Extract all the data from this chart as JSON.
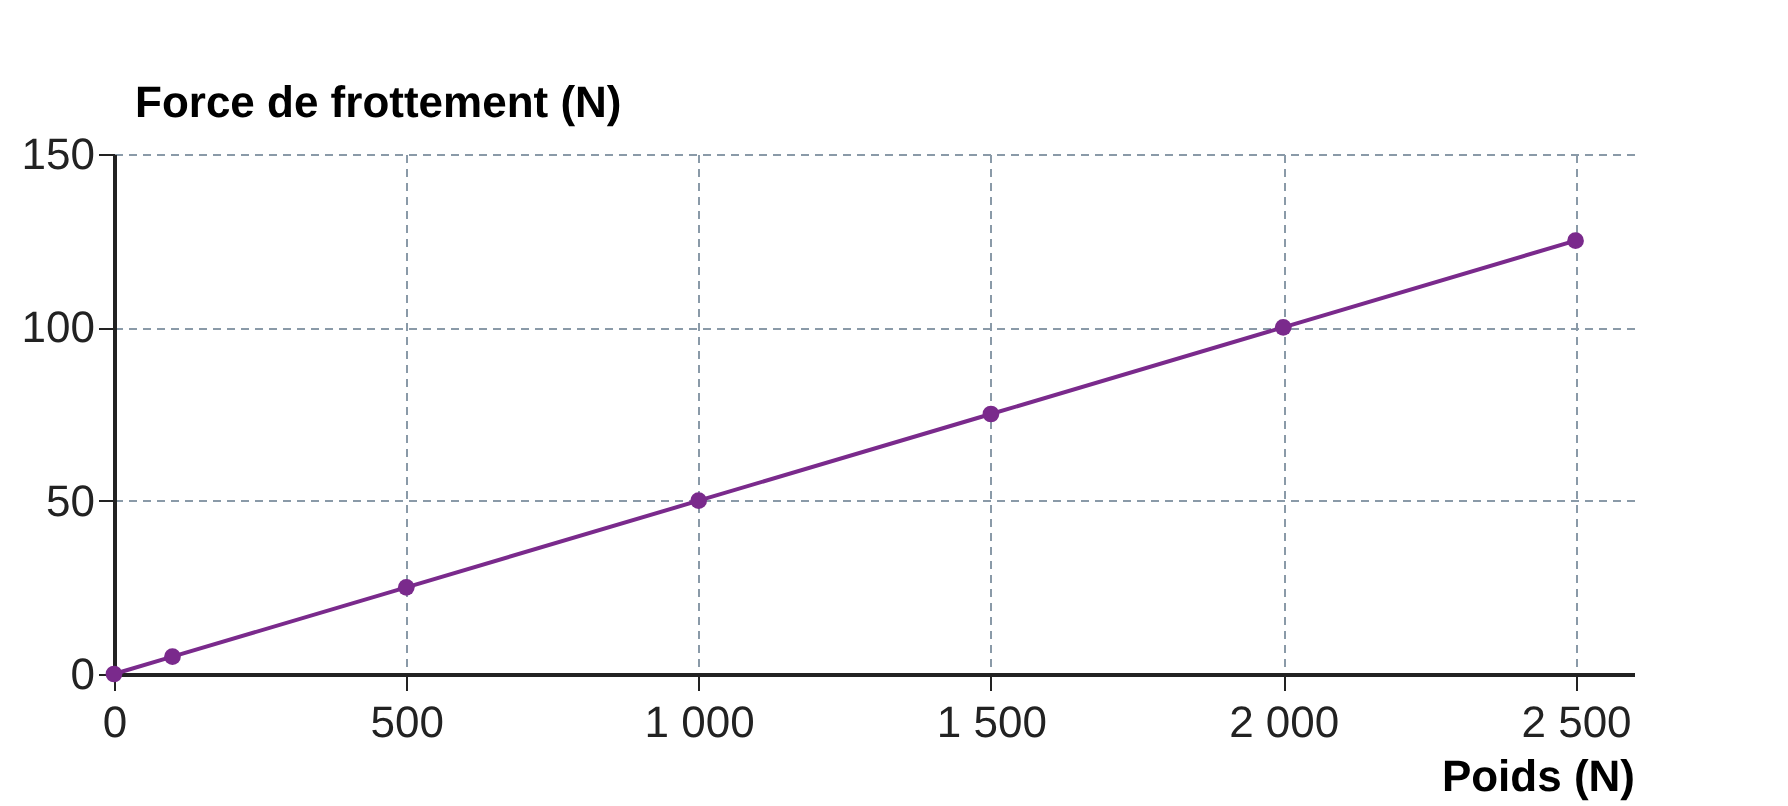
{
  "chart_data": {
    "type": "line",
    "xlabel": "Poids (N)",
    "ylabel": "Force de frottement (N)",
    "x": [
      0,
      100,
      500,
      1000,
      1500,
      2000,
      2500
    ],
    "series": [
      {
        "color": "#7a2a8c",
        "values": [
          0,
          5,
          25,
          50,
          75,
          100,
          125
        ]
      }
    ],
    "xlim": [
      0,
      2600
    ],
    "ylim": [
      0,
      150
    ],
    "xticks": [
      0,
      500,
      {
        "value": 1000,
        "label": "1 000"
      },
      {
        "value": 1500,
        "label": "1 500"
      },
      {
        "value": 2000,
        "label": "2 000"
      },
      {
        "value": 2500,
        "label": "2 500"
      }
    ],
    "yticks": [
      0,
      50,
      100,
      150
    ],
    "grid": true,
    "marker": "circle",
    "line_style": "solid"
  }
}
